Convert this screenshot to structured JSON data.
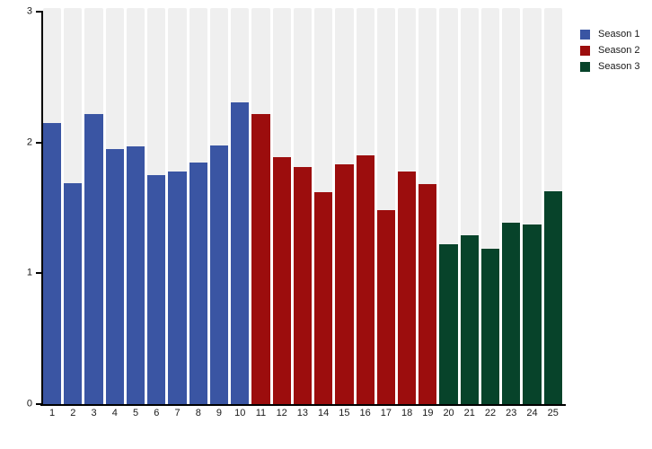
{
  "chart_data": {
    "type": "bar",
    "xlabel": "",
    "ylabel": "",
    "ylim": [
      0,
      3
    ],
    "yticks": [
      0,
      1,
      2,
      3
    ],
    "grid": false,
    "plot_background": "#efefef",
    "legend_position": "top-right",
    "series": [
      {
        "name": "Season 1",
        "color": "#3a55a3",
        "categories": [
          "1",
          "2",
          "3",
          "4",
          "5",
          "6",
          "7",
          "8",
          "9",
          "10"
        ],
        "values": [
          2.15,
          1.69,
          2.22,
          1.95,
          1.97,
          1.75,
          1.78,
          1.85,
          1.98,
          2.31
        ]
      },
      {
        "name": "Season 2",
        "color": "#9c0d0d",
        "categories": [
          "11",
          "12",
          "13",
          "14",
          "15",
          "16",
          "17",
          "18",
          "19"
        ],
        "values": [
          2.22,
          1.89,
          1.81,
          1.62,
          1.83,
          1.9,
          1.48,
          1.78,
          1.68
        ]
      },
      {
        "name": "Season 3",
        "color": "#07432a",
        "categories": [
          "20",
          "21",
          "22",
          "23",
          "24",
          "25"
        ],
        "values": [
          1.22,
          1.29,
          1.19,
          1.39,
          1.37,
          1.63
        ]
      }
    ],
    "legend": {
      "entries": [
        "Season 1",
        "Season 2",
        "Season 3"
      ]
    }
  }
}
